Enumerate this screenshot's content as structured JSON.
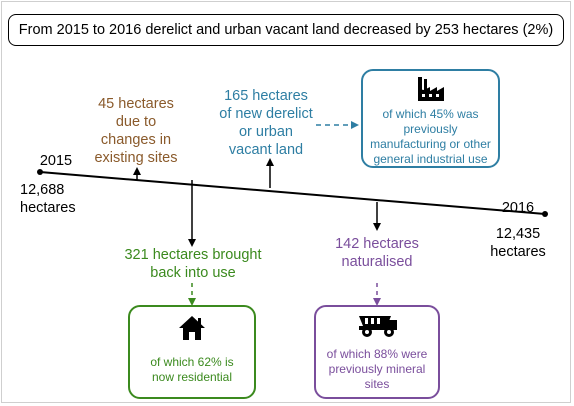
{
  "title": "From 2015 to 2016 derelict and urban vacant land decreased by 253 hectares (2%)",
  "start": {
    "year": "2015",
    "value": "12,688",
    "unit": "hectares"
  },
  "end": {
    "year": "2016",
    "value": "12,435",
    "unit": "hectares"
  },
  "changes_existing": [
    "45 hectares",
    "due to",
    "changes in",
    "existing sites"
  ],
  "new_land": [
    "165 hectares",
    "of new derelict",
    "or urban",
    "vacant land"
  ],
  "new_land_box": [
    "of which 45% was",
    "previously",
    "manufacturing or other",
    "general industrial use"
  ],
  "brought_back": [
    "321 hectares brought",
    "back into use"
  ],
  "brought_back_box": [
    "of which 62% is",
    "now residential"
  ],
  "naturalised": [
    "142 hectares",
    "naturalised"
  ],
  "naturalised_box": [
    "of which 88% were",
    "previously mineral",
    "sites"
  ],
  "icons": {
    "factory": "factory-icon",
    "house": "house-icon",
    "truck": "mining-truck-icon"
  },
  "colors": {
    "brown": "#8a5a2b",
    "blue": "#2e7ea3",
    "green": "#3b8a1e",
    "purple": "#7a4e9c"
  }
}
